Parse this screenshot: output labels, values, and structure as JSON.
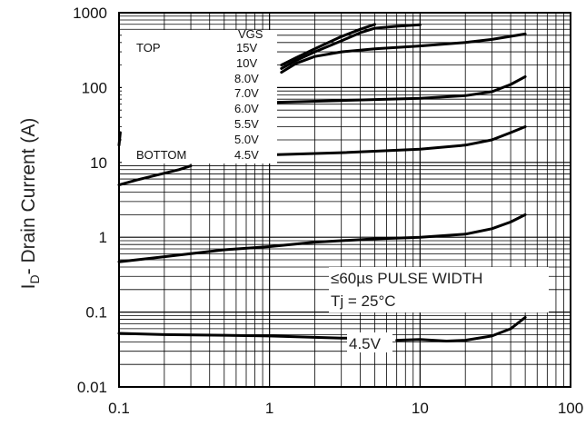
{
  "chart_data": {
    "type": "line",
    "title": "",
    "xlabel": "",
    "ylabel": "I",
    "ylabel_subscript": "D",
    "ylabel_rest": "- Drain Current (A)",
    "xscale": "log",
    "yscale": "log",
    "xlim": [
      0.1,
      100
    ],
    "ylim": [
      0.01,
      1000
    ],
    "grid": true,
    "x_tick_labels": [
      "0.1",
      "1",
      "10",
      "100"
    ],
    "y_tick_labels": [
      "0.01",
      "0.1",
      "1",
      "10",
      "100",
      "1000"
    ],
    "legend": {
      "placement": "top-left",
      "header": "VGS",
      "top_label": "TOP",
      "bottom_label": "BOTTOM",
      "entries": [
        "15V",
        "10V",
        "8.0V",
        "7.0V",
        "6.0V",
        "5.5V",
        "5.0V",
        "4.5V"
      ]
    },
    "annotations": [
      "≤60µs PULSE WIDTH",
      "Tj = 25°C",
      "4.5V"
    ],
    "series": [
      {
        "points": [
          [
            1.2,
            200
          ],
          [
            1.5,
            250
          ],
          [
            2,
            330
          ],
          [
            3,
            480
          ],
          [
            4,
            600
          ],
          [
            5,
            700
          ]
        ]
      },
      {
        "points": [
          [
            1.2,
            180
          ],
          [
            1.5,
            230
          ],
          [
            2,
            300
          ],
          [
            3,
            420
          ],
          [
            4,
            540
          ],
          [
            5,
            620
          ],
          [
            7,
            660
          ],
          [
            10,
            690
          ]
        ]
      },
      {
        "points": [
          [
            1.2,
            160
          ],
          [
            1.5,
            210
          ],
          [
            2,
            260
          ],
          [
            3,
            300
          ],
          [
            5,
            330
          ],
          [
            10,
            360
          ],
          [
            20,
            400
          ],
          [
            30,
            440
          ],
          [
            50,
            520
          ]
        ]
      },
      {
        "points": [
          [
            0.4,
            60
          ],
          [
            1,
            63
          ],
          [
            3,
            67
          ],
          [
            10,
            72
          ],
          [
            20,
            78
          ],
          [
            30,
            88
          ],
          [
            40,
            110
          ],
          [
            50,
            140
          ]
        ]
      },
      {
        "points": [
          [
            0.4,
            12
          ],
          [
            1,
            12.6
          ],
          [
            3,
            13.5
          ],
          [
            10,
            15
          ],
          [
            20,
            17
          ],
          [
            30,
            20
          ],
          [
            40,
            25
          ],
          [
            50,
            30
          ]
        ]
      },
      {
        "points": [
          [
            0.1,
            5
          ],
          [
            0.13,
            5.8
          ],
          [
            0.18,
            6.8
          ],
          [
            0.25,
            8
          ],
          [
            0.3,
            9
          ]
        ]
      },
      {
        "points": [
          [
            0.1,
            17
          ],
          [
            0.102,
            25
          ]
        ]
      },
      {
        "points": [
          [
            0.1,
            0.47
          ],
          [
            0.2,
            0.55
          ],
          [
            0.5,
            0.68
          ],
          [
            1,
            0.75
          ],
          [
            2,
            0.86
          ],
          [
            5,
            0.95
          ],
          [
            10,
            1.0
          ],
          [
            20,
            1.1
          ],
          [
            30,
            1.3
          ],
          [
            40,
            1.6
          ],
          [
            50,
            2.0
          ]
        ]
      },
      {
        "points": [
          [
            0.1,
            0.052
          ],
          [
            0.2,
            0.05
          ],
          [
            0.5,
            0.049
          ],
          [
            1,
            0.048
          ],
          [
            2,
            0.046
          ],
          [
            3,
            0.045
          ],
          [
            3.5,
            0.045
          ]
        ]
      },
      {
        "points": [
          [
            7,
            0.042
          ],
          [
            10,
            0.043
          ],
          [
            15,
            0.041
          ],
          [
            20,
            0.042
          ],
          [
            30,
            0.048
          ],
          [
            40,
            0.06
          ],
          [
            50,
            0.085
          ]
        ]
      }
    ]
  }
}
